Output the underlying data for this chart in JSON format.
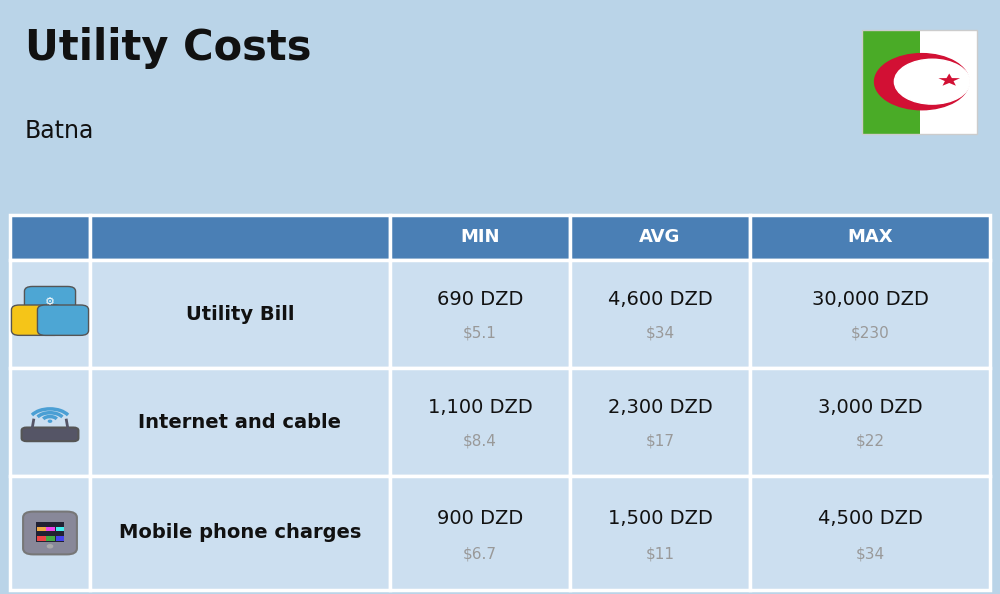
{
  "title": "Utility Costs",
  "subtitle": "Batna",
  "background_color": "#bad4e8",
  "header_bg_color": "#4a7fb5",
  "header_text_color": "#ffffff",
  "table_row_bg_color": "#ccdff0",
  "table_border_color": "#ffffff",
  "col_headers": [
    "MIN",
    "AVG",
    "MAX"
  ],
  "rows": [
    {
      "label": "Utility Bill",
      "min_dzd": "690 DZD",
      "min_usd": "$5.1",
      "avg_dzd": "4,600 DZD",
      "avg_usd": "$34",
      "max_dzd": "30,000 DZD",
      "max_usd": "$230"
    },
    {
      "label": "Internet and cable",
      "min_dzd": "1,100 DZD",
      "min_usd": "$8.4",
      "avg_dzd": "2,300 DZD",
      "avg_usd": "$17",
      "max_dzd": "3,000 DZD",
      "max_usd": "$22"
    },
    {
      "label": "Mobile phone charges",
      "min_dzd": "900 DZD",
      "min_usd": "$6.7",
      "avg_dzd": "1,500 DZD",
      "avg_usd": "$11",
      "max_dzd": "4,500 DZD",
      "max_usd": "$34"
    }
  ],
  "dzd_fontsize": 14,
  "usd_fontsize": 11,
  "label_fontsize": 14,
  "header_fontsize": 13,
  "title_fontsize": 30,
  "subtitle_fontsize": 17,
  "usd_color": "#999999",
  "text_color": "#111111",
  "col_header_text_color": "#ffffff",
  "flag_green": "#4aab27",
  "flag_white": "#ffffff",
  "flag_red": "#d21034"
}
